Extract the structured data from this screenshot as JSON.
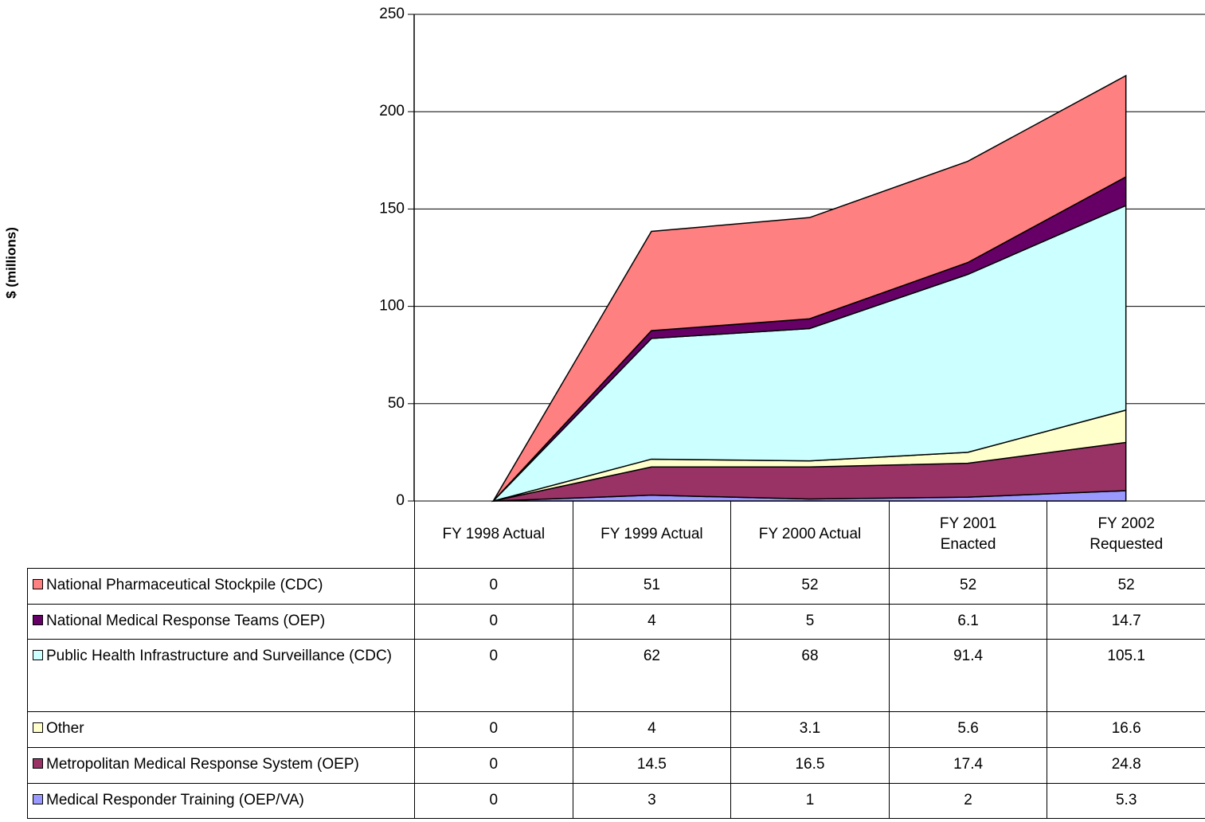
{
  "chart_data": {
    "type": "stacked_area",
    "y_axis_label": "$ (millions)",
    "categories": [
      "FY 1998 Actual",
      "FY 1999 Actual",
      "FY 2000 Actual",
      "FY 2001 Enacted",
      "FY 2002 Requested"
    ],
    "series": [
      {
        "name": "National Pharmaceutical Stockpile (CDC)",
        "color": "#ff8080",
        "values": [
          0,
          51,
          52,
          52,
          52
        ]
      },
      {
        "name": "National Medical Response Teams (OEP)",
        "color": "#660066",
        "values": [
          0,
          4,
          5,
          6.1,
          14.7
        ]
      },
      {
        "name": "Public Health Infrastructure and Surveillance (CDC)",
        "color": "#ccffff",
        "values": [
          0,
          62,
          68,
          91.4,
          105.1
        ]
      },
      {
        "name": "Other",
        "color": "#ffffcc",
        "values": [
          0,
          4,
          3.1,
          5.6,
          16.6
        ]
      },
      {
        "name": "Metropolitan Medical Response System (OEP)",
        "color": "#993366",
        "values": [
          0,
          14.5,
          16.5,
          17.4,
          24.8
        ]
      },
      {
        "name": "Medical Responder Training (OEP/VA)",
        "color": "#9999ff",
        "values": [
          0,
          3,
          1,
          2,
          5.3
        ]
      }
    ],
    "ylim": [
      0,
      250
    ],
    "yticks": [
      0,
      50,
      100,
      150,
      200,
      250
    ],
    "grid": true
  }
}
